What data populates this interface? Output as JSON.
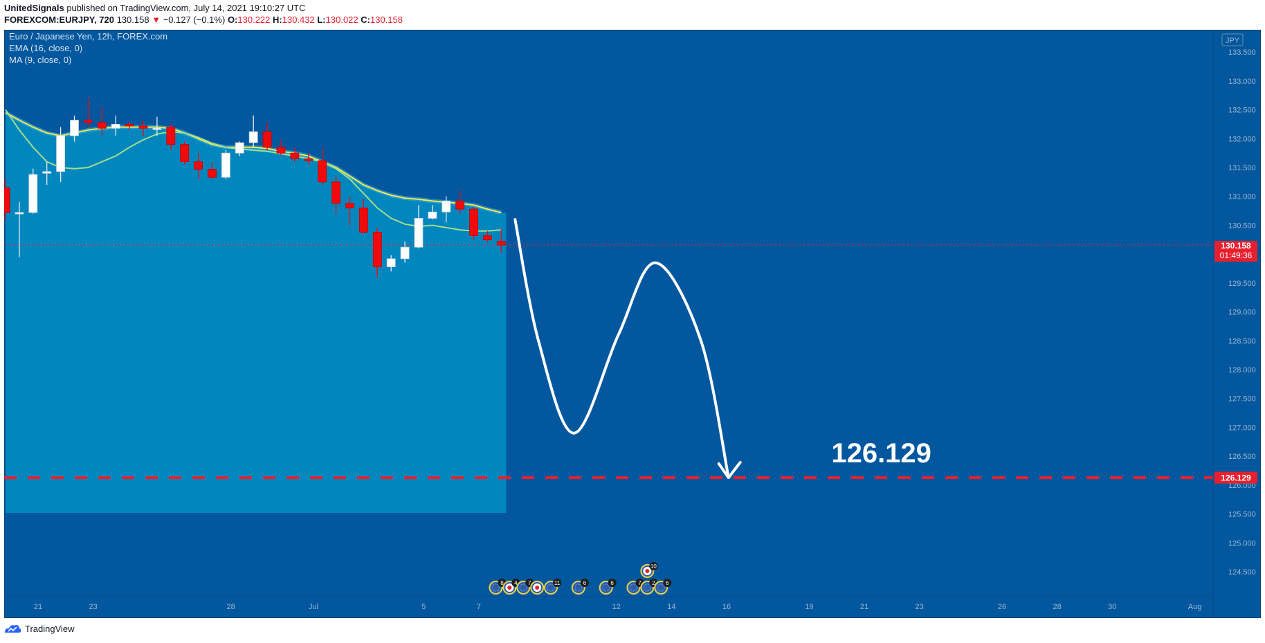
{
  "header": {
    "line1": {
      "author": "UnitedSignals",
      "rest": "published on TradingView.com, July 14, 2021 19:10:27 UTC"
    },
    "line2": {
      "symbol": "FOREXCOM:EURJPY, 720",
      "last": "130.158",
      "arrow": "▼",
      "change": "−0.127 (−0.1%)",
      "o_label": "O:",
      "o": "130.222",
      "h_label": "H:",
      "h": "130.432",
      "l_label": "L:",
      "l": "130.022",
      "c_label": "C:",
      "c": "130.158"
    }
  },
  "legend": {
    "title": "Euro / Japanese Yen, 12h, FOREX.com",
    "ema": "EMA (16, close, 0)",
    "ma": "MA (9, close, 0)"
  },
  "currency": "JPY",
  "footer": {
    "brand": "TradingView"
  },
  "colors": {
    "background": "#02579e",
    "area": "#0286be",
    "up_candle": "#ffffff",
    "down_candle": "#f00a0a",
    "ema": "#f5e84a",
    "ma": "#a0e08a",
    "target_line": "#e8202e",
    "price_label": "#e8202e",
    "axis_text": "#9fb7d0"
  },
  "chart_data": {
    "type": "candlestick",
    "title": "Euro / Japanese Yen, 12h, FOREX.com",
    "y_range": [
      124.2,
      133.85
    ],
    "y_ticks": [
      "124.500",
      "125.000",
      "125.500",
      "126.000",
      "126.500",
      "127.000",
      "127.500",
      "128.000",
      "128.500",
      "129.000",
      "129.500",
      "130.000",
      "130.500",
      "131.000",
      "131.500",
      "132.000",
      "132.500",
      "133.000",
      "133.500"
    ],
    "x_ticks": [
      {
        "label": "21",
        "date": "2021-06-21"
      },
      {
        "label": "23",
        "date": "2021-06-23"
      },
      {
        "label": "28",
        "date": "2021-06-28"
      },
      {
        "label": "Jul",
        "date": "2021-07-01"
      },
      {
        "label": "5",
        "date": "2021-07-05"
      },
      {
        "label": "7",
        "date": "2021-07-07"
      },
      {
        "label": "12",
        "date": "2021-07-12"
      },
      {
        "label": "14",
        "date": "2021-07-14"
      },
      {
        "label": "16",
        "date": "2021-07-16"
      },
      {
        "label": "19",
        "date": "2021-07-19"
      },
      {
        "label": "21",
        "date": "2021-07-21"
      },
      {
        "label": "23",
        "date": "2021-07-23"
      },
      {
        "label": "26",
        "date": "2021-07-26"
      },
      {
        "label": "28",
        "date": "2021-07-28"
      },
      {
        "label": "30",
        "date": "2021-07-30"
      },
      {
        "label": "Aug",
        "date": "2021-08-02"
      }
    ],
    "candles": [
      {
        "o": 131.15,
        "h": 131.3,
        "l": 130.6,
        "c": 130.72
      },
      {
        "o": 130.72,
        "h": 130.9,
        "l": 129.95,
        "c": 130.72
      },
      {
        "o": 130.72,
        "h": 131.48,
        "l": 130.7,
        "c": 131.38
      },
      {
        "o": 131.4,
        "h": 131.6,
        "l": 131.2,
        "c": 131.43
      },
      {
        "o": 131.43,
        "h": 132.2,
        "l": 131.25,
        "c": 132.05
      },
      {
        "o": 132.05,
        "h": 132.4,
        "l": 131.95,
        "c": 132.32
      },
      {
        "o": 132.32,
        "h": 132.7,
        "l": 132.2,
        "c": 132.28
      },
      {
        "o": 132.28,
        "h": 132.55,
        "l": 132.05,
        "c": 132.18
      },
      {
        "o": 132.18,
        "h": 132.4,
        "l": 132.05,
        "c": 132.25
      },
      {
        "o": 132.25,
        "h": 132.3,
        "l": 132.15,
        "c": 132.22
      },
      {
        "o": 132.22,
        "h": 132.32,
        "l": 132.05,
        "c": 132.18
      },
      {
        "o": 132.18,
        "h": 132.38,
        "l": 132.05,
        "c": 132.18
      },
      {
        "o": 132.2,
        "h": 132.25,
        "l": 131.8,
        "c": 131.9
      },
      {
        "o": 131.9,
        "h": 131.95,
        "l": 131.55,
        "c": 131.6
      },
      {
        "o": 131.6,
        "h": 131.75,
        "l": 131.3,
        "c": 131.47
      },
      {
        "o": 131.47,
        "h": 131.6,
        "l": 131.3,
        "c": 131.33
      },
      {
        "o": 131.33,
        "h": 131.8,
        "l": 131.3,
        "c": 131.75
      },
      {
        "o": 131.75,
        "h": 131.95,
        "l": 131.7,
        "c": 131.93
      },
      {
        "o": 131.93,
        "h": 132.4,
        "l": 131.85,
        "c": 132.12
      },
      {
        "o": 132.12,
        "h": 132.28,
        "l": 131.8,
        "c": 131.85
      },
      {
        "o": 131.85,
        "h": 131.98,
        "l": 131.72,
        "c": 131.75
      },
      {
        "o": 131.75,
        "h": 131.85,
        "l": 131.6,
        "c": 131.65
      },
      {
        "o": 131.65,
        "h": 131.75,
        "l": 131.55,
        "c": 131.62
      },
      {
        "o": 131.62,
        "h": 131.85,
        "l": 131.2,
        "c": 131.25
      },
      {
        "o": 131.25,
        "h": 131.35,
        "l": 130.7,
        "c": 130.88
      },
      {
        "o": 130.88,
        "h": 131.0,
        "l": 130.5,
        "c": 130.8
      },
      {
        "o": 130.8,
        "h": 130.95,
        "l": 130.35,
        "c": 130.38
      },
      {
        "o": 130.38,
        "h": 130.45,
        "l": 129.6,
        "c": 129.78
      },
      {
        "o": 129.78,
        "h": 129.98,
        "l": 129.7,
        "c": 129.92
      },
      {
        "o": 129.92,
        "h": 130.22,
        "l": 129.85,
        "c": 130.12
      },
      {
        "o": 130.12,
        "h": 130.85,
        "l": 130.1,
        "c": 130.62
      },
      {
        "o": 130.62,
        "h": 130.85,
        "l": 130.6,
        "c": 130.73
      },
      {
        "o": 130.73,
        "h": 131.0,
        "l": 130.55,
        "c": 130.92
      },
      {
        "o": 130.92,
        "h": 131.1,
        "l": 130.7,
        "c": 130.78
      },
      {
        "o": 130.78,
        "h": 130.82,
        "l": 130.25,
        "c": 130.32
      },
      {
        "o": 130.32,
        "h": 130.4,
        "l": 130.2,
        "c": 130.25
      },
      {
        "o": 130.222,
        "h": 130.432,
        "l": 130.022,
        "c": 130.158
      }
    ],
    "ema_16": [
      132.45,
      132.32,
      132.2,
      132.1,
      132.05,
      132.1,
      132.15,
      132.18,
      132.2,
      132.2,
      132.2,
      132.2,
      132.18,
      132.1,
      132.0,
      131.9,
      131.85,
      131.85,
      131.85,
      131.83,
      131.78,
      131.75,
      131.7,
      131.6,
      131.5,
      131.35,
      131.2,
      131.1,
      131.02,
      130.97,
      130.95,
      130.92,
      130.9,
      130.88,
      130.85,
      130.78,
      130.72
    ],
    "ma_9": [
      132.5,
      132.15,
      131.85,
      131.6,
      131.5,
      131.48,
      131.5,
      131.6,
      131.7,
      131.85,
      131.98,
      132.08,
      132.12,
      132.1,
      132.02,
      131.92,
      131.85,
      131.82,
      131.8,
      131.78,
      131.74,
      131.7,
      131.65,
      131.6,
      131.48,
      131.3,
      131.05,
      130.8,
      130.62,
      130.52,
      130.48,
      130.5,
      130.46,
      130.42,
      130.4,
      130.4,
      130.42
    ],
    "last_price": "130.158",
    "countdown": "01:49:36",
    "target": {
      "value": 126.129,
      "label": "126.129"
    },
    "projection_path": [
      {
        "i": 37.0,
        "v": 130.6
      },
      {
        "i": 38.7,
        "v": 128.5
      },
      {
        "i": 41.3,
        "v": 126.9
      },
      {
        "i": 44.5,
        "v": 128.6
      },
      {
        "i": 47.2,
        "v": 129.85
      },
      {
        "i": 50.5,
        "v": 128.5
      },
      {
        "i": 52.5,
        "v": 126.13
      }
    ],
    "events": [
      {
        "i": 35.6,
        "row": 0,
        "n": "8"
      },
      {
        "i": 36.6,
        "row": 0,
        "n": "4"
      },
      {
        "i": 37.6,
        "row": 0,
        "n": "7"
      },
      {
        "i": 38.6,
        "row": 0,
        "n": ""
      },
      {
        "i": 39.6,
        "row": 0,
        "n": "11"
      },
      {
        "i": 41.6,
        "row": 0,
        "n": "6"
      },
      {
        "i": 43.6,
        "row": 0,
        "n": "6"
      },
      {
        "i": 45.6,
        "row": 0,
        "n": "7"
      },
      {
        "i": 46.6,
        "row": 0,
        "n": "2"
      },
      {
        "i": 47.6,
        "row": 0,
        "n": "6"
      },
      {
        "i": 46.6,
        "row": 1,
        "n": "10"
      }
    ]
  }
}
